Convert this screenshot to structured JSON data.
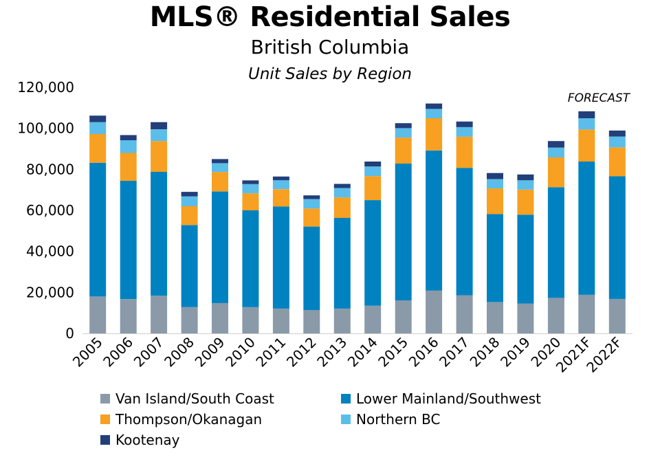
{
  "title": "MLS® Residential Sales",
  "subtitle": "British Columbia",
  "subtitle2": "Unit Sales by Region",
  "chart_data": {
    "type": "bar",
    "stacked": true,
    "categories": [
      "2005",
      "2006",
      "2007",
      "2008",
      "2009",
      "2010",
      "2011",
      "2012",
      "2013",
      "2014",
      "2015",
      "2016",
      "2017",
      "2018",
      "2019",
      "2020",
      "2021F",
      "2022F"
    ],
    "ylim": [
      0,
      120000
    ],
    "yticks": [
      0,
      20000,
      40000,
      60000,
      80000,
      100000,
      120000
    ],
    "ytick_labels": [
      "0",
      "20,000",
      "40,000",
      "60,000",
      "80,000",
      "100,000",
      "120,000"
    ],
    "annotation": "FORECAST",
    "grid": false,
    "legend_position": "bottom",
    "series": [
      {
        "name": "Van Island/South Coast",
        "color": "#8a9aa8",
        "values": [
          18000,
          16700,
          18400,
          12800,
          14800,
          12800,
          12100,
          11400,
          12100,
          13500,
          16100,
          20900,
          18600,
          15300,
          14600,
          17300,
          18800,
          16800
        ]
      },
      {
        "name": "Lower Mainland/Southwest",
        "color": "#0082c1",
        "values": [
          65200,
          57700,
          60400,
          40000,
          54400,
          47200,
          49800,
          40700,
          44200,
          51500,
          66700,
          68300,
          62100,
          42900,
          43300,
          54000,
          65000,
          59800
        ]
      },
      {
        "name": "Thompson/Okanagan",
        "color": "#f7a021",
        "values": [
          14000,
          13600,
          15000,
          9200,
          9500,
          8300,
          8400,
          8800,
          10000,
          11700,
          12700,
          15700,
          15200,
          12500,
          12200,
          14500,
          15600,
          14100
        ]
      },
      {
        "name": "Northern BC",
        "color": "#5bbde9",
        "values": [
          5800,
          6200,
          5700,
          4800,
          4300,
          4500,
          4400,
          4600,
          4600,
          4700,
          4600,
          4600,
          4700,
          4500,
          4600,
          4800,
          5500,
          5300
        ]
      },
      {
        "name": "Kootenay",
        "color": "#223f79",
        "values": [
          3200,
          2500,
          3500,
          2200,
          2000,
          1800,
          1800,
          1800,
          2000,
          2400,
          2400,
          2600,
          2700,
          3000,
          2800,
          3200,
          3400,
          2900
        ]
      }
    ]
  }
}
